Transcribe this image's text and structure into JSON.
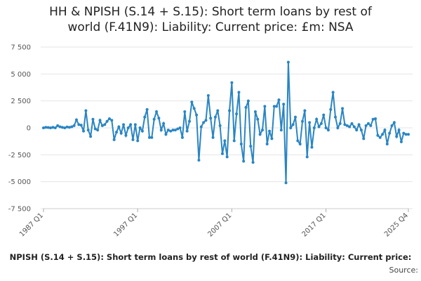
{
  "chart_data": {
    "type": "line",
    "title_lines": [
      "HH & NPISH (S.14 + S.15): Short term loans by rest of",
      "world (F.41N9): Liability: Current price: £m: NSA"
    ],
    "caption": "NPISH (S.14 + S.15): Short term loans by rest of world (F.41N9): Liability: Current price:",
    "source": "Source:",
    "categories": [
      "1987 Q1",
      null,
      null,
      null,
      null,
      null,
      null,
      null,
      null,
      null,
      null,
      null,
      null,
      null,
      null,
      null,
      null,
      null,
      null,
      null,
      null,
      null,
      null,
      null,
      null,
      null,
      null,
      null,
      null,
      null,
      null,
      null,
      null,
      null,
      null,
      null,
      null,
      null,
      null,
      null,
      "1997 Q1",
      null,
      null,
      null,
      null,
      null,
      null,
      null,
      null,
      null,
      null,
      null,
      null,
      null,
      null,
      null,
      null,
      null,
      null,
      null,
      null,
      null,
      null,
      null,
      null,
      null,
      null,
      null,
      null,
      null,
      null,
      null,
      null,
      null,
      null,
      null,
      null,
      null,
      null,
      null,
      "2007 Q1",
      null,
      null,
      null,
      null,
      null,
      null,
      null,
      null,
      null,
      null,
      null,
      null,
      null,
      null,
      null,
      null,
      null,
      null,
      null,
      null,
      null,
      null,
      null,
      null,
      null,
      null,
      null,
      null,
      null,
      null,
      null,
      null,
      null,
      null,
      null,
      null,
      null,
      null,
      null,
      "2017 Q1",
      null,
      null,
      null,
      null,
      null,
      null,
      null,
      null,
      null,
      null,
      null,
      null,
      null,
      null,
      null,
      null,
      null,
      null,
      null,
      null,
      null,
      null,
      null,
      null,
      null,
      null,
      null,
      null,
      null,
      null,
      null,
      null,
      null,
      null,
      "2025 Q4"
    ],
    "series": [
      {
        "name": "HH & NPISH (S.14 + S.15): Short term loans by rest of world (F.41N9): Liability: Current price: £m: NSA",
        "color": "#2a85c3",
        "values": [
          0,
          50,
          30,
          0,
          50,
          0,
          200,
          100,
          50,
          0,
          80,
          50,
          100,
          200,
          750,
          300,
          250,
          -300,
          1600,
          -200,
          -800,
          800,
          -100,
          -200,
          700,
          200,
          300,
          600,
          850,
          700,
          -1100,
          -400,
          100,
          -500,
          300,
          -700,
          0,
          300,
          -1100,
          300,
          -1200,
          0,
          -300,
          1000,
          1700,
          -900,
          -900,
          800,
          1500,
          900,
          -200,
          400,
          -600,
          -200,
          -300,
          -200,
          -200,
          -100,
          0,
          -900,
          1500,
          -300,
          600,
          2400,
          1800,
          1200,
          -3000,
          100,
          500,
          700,
          3000,
          900,
          -900,
          1000,
          1600,
          200,
          -2400,
          -1200,
          -2700,
          1600,
          4200,
          -1200,
          1300,
          3300,
          -1500,
          -3100,
          1900,
          2500,
          -1700,
          -3200,
          1500,
          800,
          -600,
          -200,
          2000,
          -1500,
          -300,
          -1000,
          2000,
          2000,
          2600,
          -200,
          2200,
          -5100,
          6100,
          0,
          300,
          1000,
          -1200,
          -1500,
          600,
          1600,
          -2700,
          500,
          -1800,
          0,
          800,
          100,
          400,
          1200,
          0,
          -200,
          1700,
          3300,
          1000,
          0,
          400,
          1800,
          300,
          200,
          100,
          400,
          100,
          -200,
          300,
          -200,
          -1000,
          200,
          400,
          200,
          800,
          850,
          -700,
          -900,
          -600,
          -200,
          -1500,
          -500,
          200,
          500,
          -800,
          -200,
          -1300,
          -500,
          -600,
          -600
        ]
      }
    ],
    "ylim": [
      -7500,
      7500
    ],
    "yticks": [
      {
        "value": -7500,
        "label": "-7 500"
      },
      {
        "value": -5000,
        "label": "-5 000"
      },
      {
        "value": -2500,
        "label": "-2 500"
      },
      0,
      {
        "value": 2500,
        "label": "2 500"
      },
      {
        "value": 5000,
        "label": "5 000"
      },
      {
        "value": 7500,
        "label": "7 500"
      }
    ],
    "grid": true
  }
}
